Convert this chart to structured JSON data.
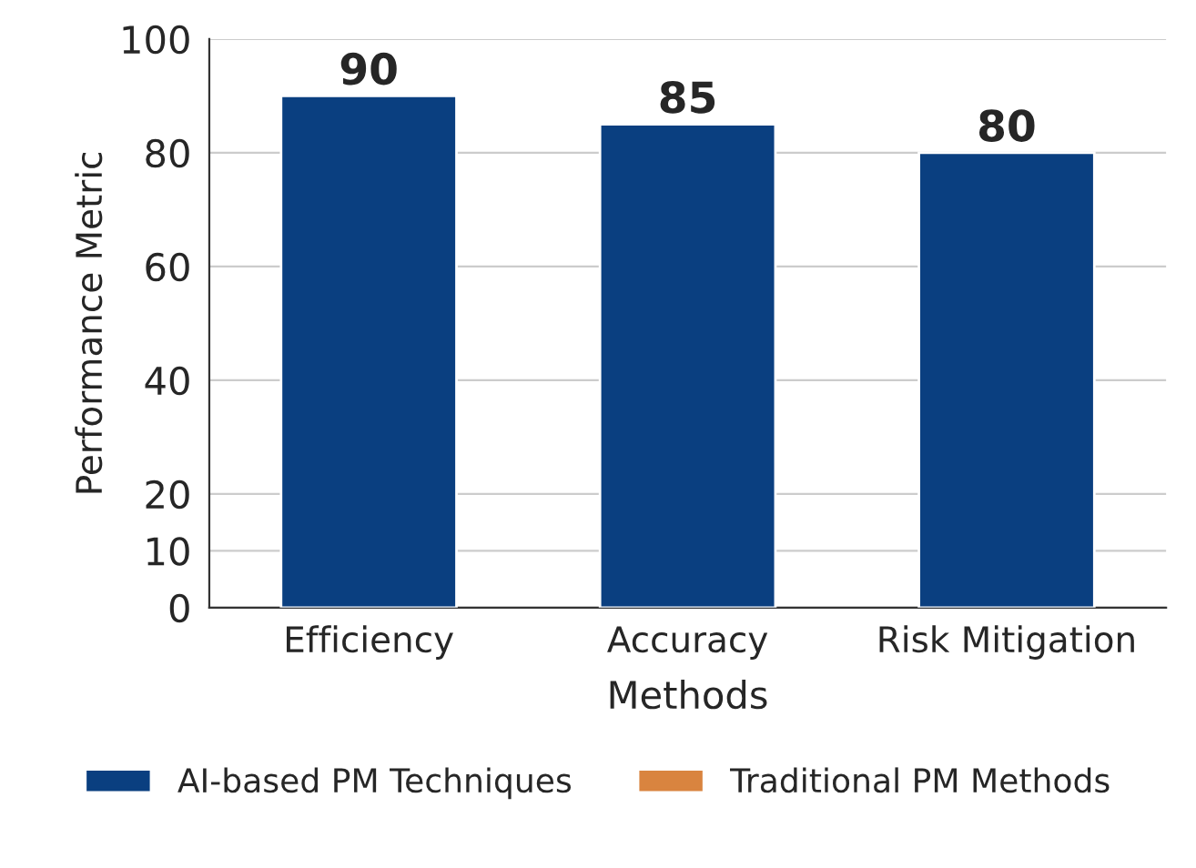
{
  "chart_data": {
    "type": "bar",
    "xlabel": "Methods",
    "ylabel": "Performance Metric",
    "categories": [
      "Efficiency",
      "Accuracy",
      "Risk Mitigation"
    ],
    "series": [
      {
        "name": "AI-based PM Techniques",
        "color": "#0a3f80",
        "values": [
          90,
          85,
          80
        ]
      },
      {
        "name": "Traditional PM Methods",
        "color": "#d9843f",
        "values": [
          null,
          null,
          null
        ]
      }
    ],
    "ylim": [
      0,
      100
    ],
    "yticks": [
      0,
      10,
      20,
      40,
      60,
      80,
      100
    ],
    "grid": "y",
    "data_labels": true,
    "legend": "bottom"
  }
}
